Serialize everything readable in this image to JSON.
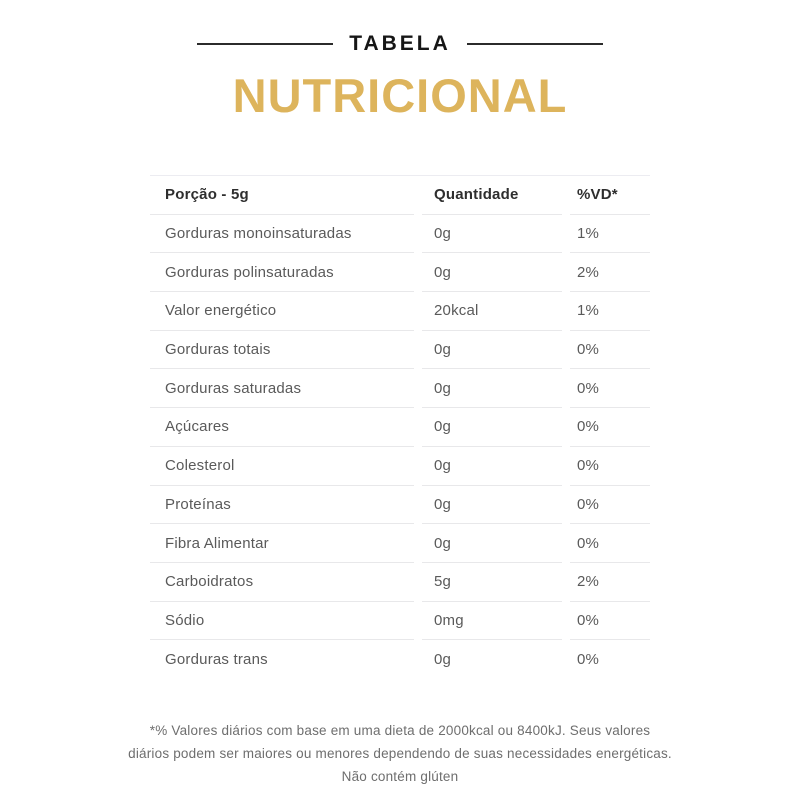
{
  "header": {
    "kicker": "TABELA",
    "title": "NUTRICIONAL",
    "accent_color": "#DDB45C"
  },
  "table": {
    "columns": [
      "Porção - 5g",
      "Quantidade",
      "%VD*"
    ],
    "rows": [
      {
        "label": "Gorduras monoinsaturadas",
        "quantity": "0g",
        "vd": "1%"
      },
      {
        "label": "Gorduras polinsaturadas",
        "quantity": "0g",
        "vd": "2%"
      },
      {
        "label": "Valor energético",
        "quantity": "20kcal",
        "vd": "1%"
      },
      {
        "label": "Gorduras totais",
        "quantity": "0g",
        "vd": "0%"
      },
      {
        "label": "Gorduras saturadas",
        "quantity": "0g",
        "vd": "0%"
      },
      {
        "label": "Açúcares",
        "quantity": "0g",
        "vd": "0%"
      },
      {
        "label": "Colesterol",
        "quantity": "0g",
        "vd": "0%"
      },
      {
        "label": "Proteínas",
        "quantity": "0g",
        "vd": "0%"
      },
      {
        "label": "Fibra Alimentar",
        "quantity": "0g",
        "vd": "0%"
      },
      {
        "label": "Carboidratos",
        "quantity": "5g",
        "vd": "2%"
      },
      {
        "label": "Sódio",
        "quantity": "0mg",
        "vd": "0%"
      },
      {
        "label": "Gorduras trans",
        "quantity": "0g",
        "vd": "0%"
      }
    ]
  },
  "footnote": {
    "text": "*% Valores diários com base em uma dieta de 2000kcal ou 8400kJ. Seus valores diários podem ser maiores ou menores dependendo de suas necessidades energéticas. Não contém glúten"
  }
}
